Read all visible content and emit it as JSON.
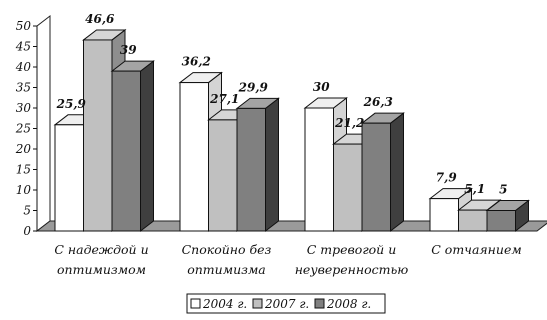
{
  "chart_data": {
    "type": "bar",
    "categories": [
      [
        "С надеждой и",
        "оптимизмом"
      ],
      [
        "Спокойно без",
        "оптимизма"
      ],
      [
        "С тревогой и",
        "неуверенностью"
      ],
      [
        "С отчаянием"
      ]
    ],
    "series": [
      {
        "name": "2004 г.",
        "values": [
          25.9,
          36.2,
          30,
          7.9
        ],
        "labels": [
          "25,9",
          "36,2",
          "30",
          "7,9"
        ],
        "color": "#ffffff"
      },
      {
        "name": "2007 г.",
        "values": [
          46.6,
          27.1,
          21.2,
          5.1
        ],
        "labels": [
          "46,6",
          "27,1",
          "21,2",
          "5,1"
        ],
        "color": "#c0c0c0"
      },
      {
        "name": "2008 г.",
        "values": [
          39,
          29.9,
          26.3,
          5
        ],
        "labels": [
          "39",
          "29,9",
          "26,3",
          "5"
        ],
        "color": "#808080"
      }
    ],
    "ylim": [
      0,
      50
    ],
    "yticks": [
      "0",
      "5",
      "10",
      "15",
      "20",
      "25",
      "30",
      "35",
      "40",
      "45",
      "50"
    ],
    "grid": false,
    "legend_position": "bottom-center",
    "style": "3d-clustered-column"
  }
}
